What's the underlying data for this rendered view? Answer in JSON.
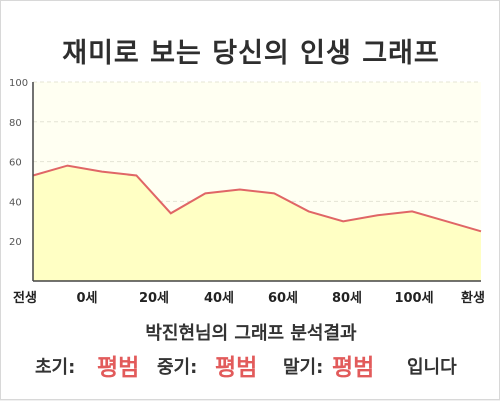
{
  "title": "재미로 보는 당신의 인생 그래프",
  "owner_line": "박진현님의 그래프 분석결과",
  "result": {
    "early_label": "초기:",
    "early_value": "평범",
    "mid_label": "중기:",
    "mid_value": "평범",
    "late_label": "말기:",
    "late_value": "평범",
    "suffix": "입니다"
  },
  "colors": {
    "line": "#e06666",
    "fill": "#ffffc4",
    "plot_bg": "#fffff2",
    "highlight": "#e25b5b"
  },
  "chart_data": {
    "type": "area",
    "title": "",
    "xlabel": "",
    "ylabel": "",
    "ylim": [
      0,
      100
    ],
    "yticks": [
      20,
      40,
      60,
      80,
      100
    ],
    "grid": true,
    "x_tick_labels": [
      "전생",
      "0세",
      "20세",
      "40세",
      "60세",
      "80세",
      "100세",
      "환생"
    ],
    "points": [
      {
        "label": "전생",
        "value": 53
      },
      {
        "label": "0세",
        "value": 58
      },
      {
        "label": "",
        "value": 55
      },
      {
        "label": "20세",
        "value": 53
      },
      {
        "label": "",
        "value": 34
      },
      {
        "label": "40세",
        "value": 44
      },
      {
        "label": "",
        "value": 46
      },
      {
        "label": "60세",
        "value": 44
      },
      {
        "label": "",
        "value": 35
      },
      {
        "label": "80세",
        "value": 30
      },
      {
        "label": "",
        "value": 33
      },
      {
        "label": "100세",
        "value": 35
      },
      {
        "label": "",
        "value": 30
      },
      {
        "label": "환생",
        "value": 25
      }
    ]
  }
}
